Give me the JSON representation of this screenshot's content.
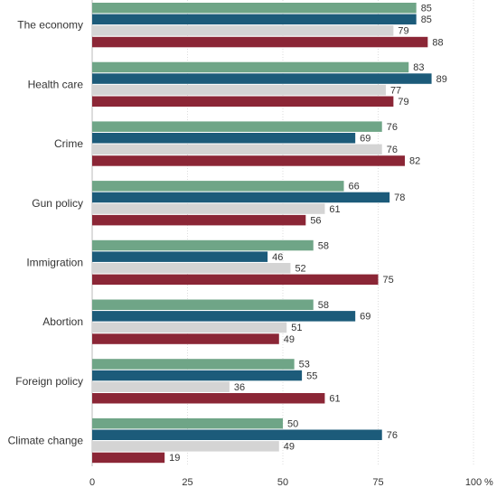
{
  "chart_data": {
    "type": "bar",
    "orientation": "horizontal",
    "categories": [
      "The economy",
      "Health care",
      "Crime",
      "Gun policy",
      "Immigration",
      "Abortion",
      "Foreign policy",
      "Climate change"
    ],
    "series": [
      {
        "values": [
          85,
          83,
          76,
          66,
          58,
          58,
          53,
          50
        ],
        "color": "#6FA587"
      },
      {
        "values": [
          85,
          89,
          69,
          78,
          46,
          69,
          55,
          76
        ],
        "color": "#1C5B7A"
      },
      {
        "values": [
          79,
          77,
          76,
          61,
          52,
          51,
          36,
          49
        ],
        "color": "#D4D4D4"
      },
      {
        "values": [
          88,
          79,
          82,
          56,
          75,
          49,
          61,
          19
        ],
        "color": "#8B2636"
      }
    ],
    "xlim": [
      0,
      100
    ],
    "xticks": [
      "0",
      "25",
      "50",
      "75",
      "100"
    ],
    "x_unit": "%",
    "grid": true
  }
}
